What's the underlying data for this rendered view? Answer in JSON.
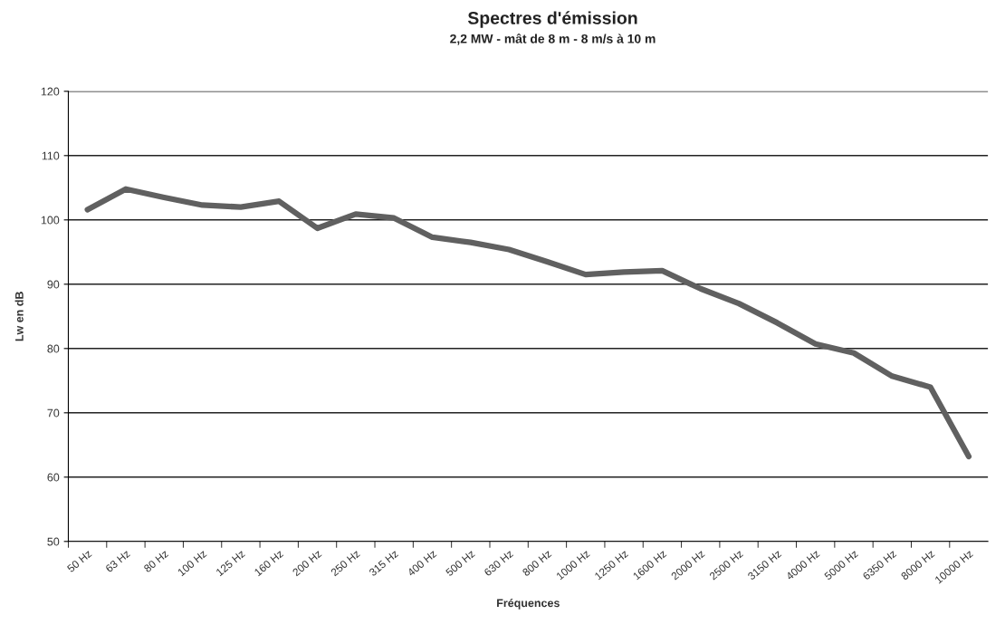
{
  "chart_data": {
    "type": "line",
    "title": "Spectres d'émission",
    "subtitle": "2,2 MW - mât de 8 m - 8 m/s à 10 m",
    "xlabel": "Fréquences",
    "ylabel": "Lw en dB",
    "categories": [
      "50 Hz",
      "63 Hz",
      "80 Hz",
      "100 Hz",
      "125 Hz",
      "160 Hz",
      "200 Hz",
      "250 Hz",
      "315 Hz",
      "400 Hz",
      "500 Hz",
      "630 Hz",
      "800 Hz",
      "1000 Hz",
      "1250 Hz",
      "1600 Hz",
      "2000 Hz",
      "2500 Hz",
      "3150 Hz",
      "4000 Hz",
      "5000 Hz",
      "6350 Hz",
      "8000 Hz",
      "10000 Hz"
    ],
    "series": [
      {
        "color": "#606060",
        "values": [
          101.6,
          104.8,
          103.5,
          102.3,
          102.0,
          102.9,
          98.7,
          100.9,
          100.3,
          97.3,
          96.5,
          95.4,
          93.5,
          91.5,
          91.9,
          92.1,
          89.3,
          87.0,
          84.0,
          80.7,
          79.3,
          75.7,
          74.0,
          63.2
        ]
      }
    ],
    "ylim": [
      50,
      120
    ],
    "yticks": [
      50,
      60,
      70,
      80,
      90,
      100,
      110,
      120
    ],
    "grid": "y",
    "marker": "none",
    "line_style": "solid"
  }
}
